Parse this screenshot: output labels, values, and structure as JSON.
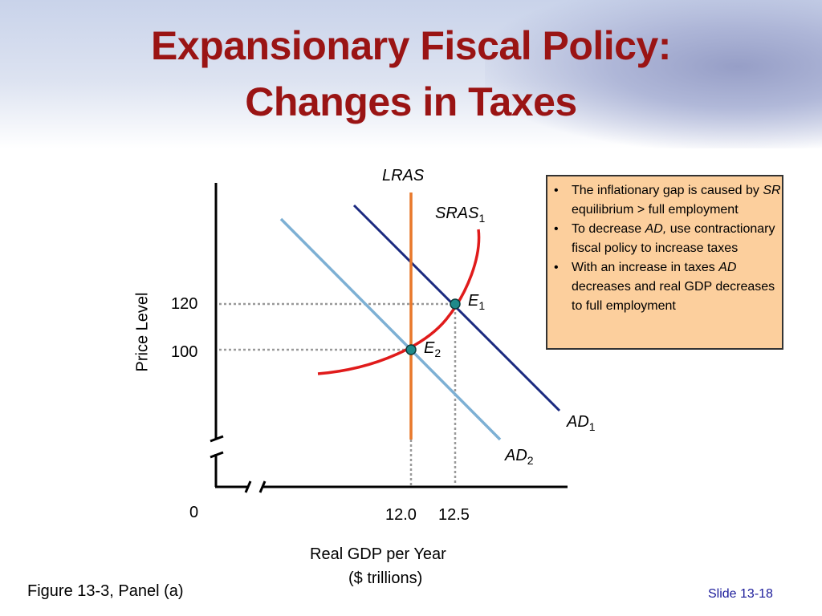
{
  "title": {
    "line1": "Expansionary Fiscal Policy:",
    "line2": "Changes in Taxes"
  },
  "graph": {
    "y_axis_label": "Price Level",
    "x_axis_label_line1": "Real GDP per Year",
    "x_axis_label_line2": "($ trillions)",
    "origin_label": "0",
    "y_ticks": [
      "120",
      "100"
    ],
    "x_ticks": [
      "12.0",
      "12.5"
    ],
    "curves": {
      "lras": "LRAS",
      "sras_main": "SRAS",
      "sras_sub": "1",
      "ad1_main": "AD",
      "ad1_sub": "1",
      "ad2_main": "AD",
      "ad2_sub": "2"
    },
    "points": {
      "e1_main": "E",
      "e1_sub": "1",
      "e2_main": "E",
      "e2_sub": "2"
    },
    "colors": {
      "lras": "#e8782a",
      "sras": "#e01b1b",
      "ad1": "#1b2a80",
      "ad2": "#7db0d4",
      "points": "#1f8a8a"
    }
  },
  "callout": {
    "bullet": "•",
    "b1_pre": "The inflationary gap is caused by",
    "b1_em": "SR",
    "b1_post": "equilibrium > full employment",
    "b2_pre": "To decrease",
    "b2_em": "AD,",
    "b2_post": "use contractionary  fiscal policy to increase taxes",
    "b3_pre": "With an increase in taxes",
    "b3_em": "AD",
    "b3_post": "decreases and real GDP decreases to full employment"
  },
  "footer": {
    "figure": "Figure 13-3, Panel (a)",
    "slide": "Slide 13-18"
  }
}
